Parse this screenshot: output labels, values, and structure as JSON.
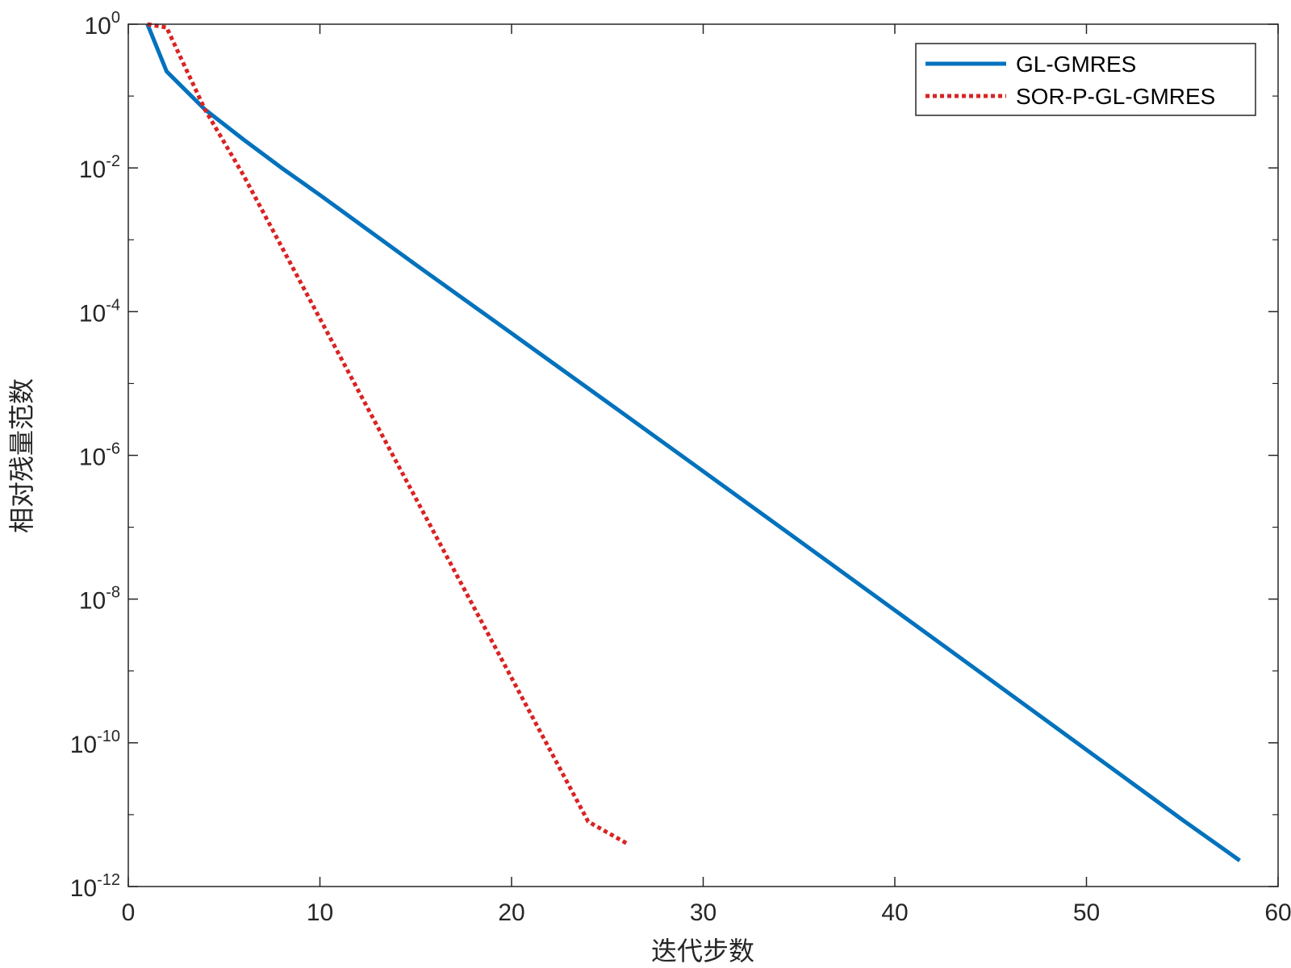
{
  "chart_data": {
    "type": "line",
    "title": "",
    "xlabel": "迭代步数",
    "ylabel": "相对残量范数",
    "xlim": [
      0,
      60
    ],
    "ylim": [
      1e-12,
      1
    ],
    "yscale": "log",
    "grid": false,
    "legend_position": "top-right",
    "x_ticks": [
      "0",
      "10",
      "20",
      "30",
      "40",
      "50",
      "60"
    ],
    "y_ticks": [
      {
        "base": "10",
        "exp": "0"
      },
      {
        "base": "10",
        "exp": "-2"
      },
      {
        "base": "10",
        "exp": "-4"
      },
      {
        "base": "10",
        "exp": "-6"
      },
      {
        "base": "10",
        "exp": "-8"
      },
      {
        "base": "10",
        "exp": "-10"
      },
      {
        "base": "10",
        "exp": "-12"
      }
    ],
    "series": [
      {
        "name": "GL-GMRES",
        "color": "#0072bd",
        "style": "solid",
        "x": [
          1,
          2,
          4,
          6,
          8,
          10,
          15,
          20,
          25,
          30,
          35,
          40,
          45,
          50,
          55,
          58
        ],
        "y": [
          1,
          0.22,
          0.065,
          0.025,
          0.01,
          0.0042,
          0.00045,
          5e-05,
          5.5e-06,
          6e-07,
          6.5e-08,
          7e-09,
          7.5e-10,
          8e-11,
          8.5e-12,
          2.3e-12
        ]
      },
      {
        "name": "SOR-P-GL-GMRES",
        "color": "#d92323",
        "style": "dotted",
        "x": [
          1,
          2,
          4,
          6,
          8,
          10,
          12,
          14,
          16,
          18,
          20,
          22,
          24,
          26
        ],
        "y": [
          1,
          0.9,
          0.065,
          0.008,
          0.0008,
          8e-05,
          8e-06,
          8e-07,
          8e-08,
          8e-09,
          8e-10,
          8e-11,
          8e-12,
          4e-12
        ]
      }
    ]
  }
}
